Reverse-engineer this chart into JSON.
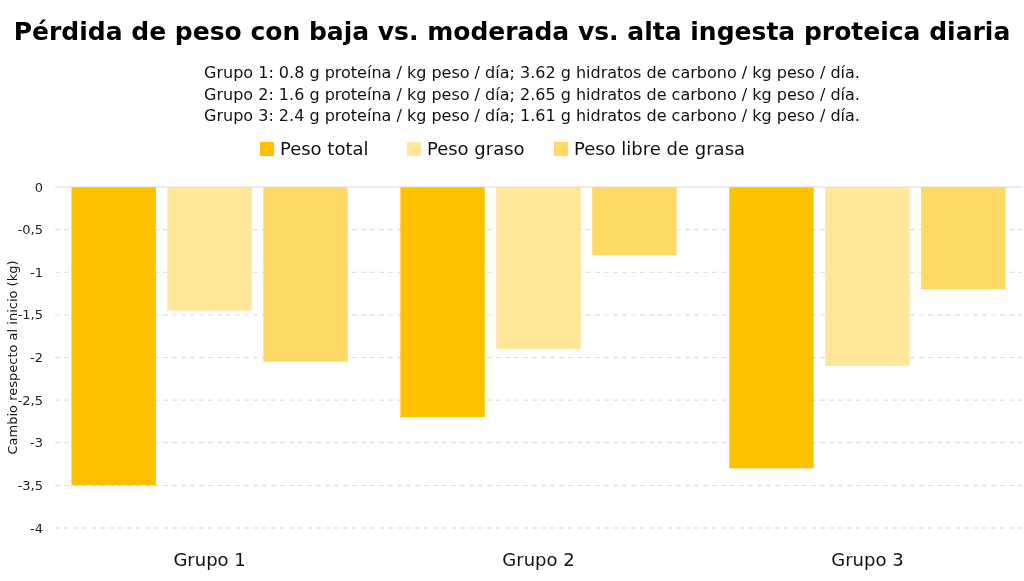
{
  "chart_data": {
    "type": "bar",
    "title": "Pérdida de peso con baja vs. moderada vs. alta ingesta proteica diaria",
    "subtitle": "Grupo 1: 0.8 g proteína / kg peso / día; 3.62 g hidratos de carbono / kg peso / día.\nGrupo 2: 1.6 g proteína / kg peso / día; 2.65 g hidratos de carbono / kg peso / día.\nGrupo 3: 2.4 g proteína / kg peso / día; 1.61 g hidratos de carbono / kg peso / día.",
    "ylabel": "Cambio respecto al inicio (kg)",
    "categories": [
      "Grupo 1",
      "Grupo 2",
      "Grupo 3"
    ],
    "series": [
      {
        "name": "Peso total",
        "color": "#ffc000",
        "values": [
          -3.5,
          -2.7,
          -3.3
        ]
      },
      {
        "name": "Peso graso",
        "color": "#ffe699",
        "values": [
          -1.45,
          -1.9,
          -2.1
        ]
      },
      {
        "name": "Peso libre de grasa",
        "color": "#ffd966",
        "values": [
          -2.05,
          -0.8,
          -1.2
        ]
      }
    ],
    "ylim": [
      -4,
      0
    ],
    "yticks": [
      0,
      {
        "value": -0.5,
        "label": "-0,5"
      },
      -1,
      {
        "value": -1.5,
        "label": "-1,5"
      },
      -2,
      {
        "value": -2.5,
        "label": "-2,5"
      },
      -3,
      {
        "value": -3.5,
        "label": "-3,5"
      },
      -4
    ],
    "grid": "y",
    "legend": "top"
  }
}
